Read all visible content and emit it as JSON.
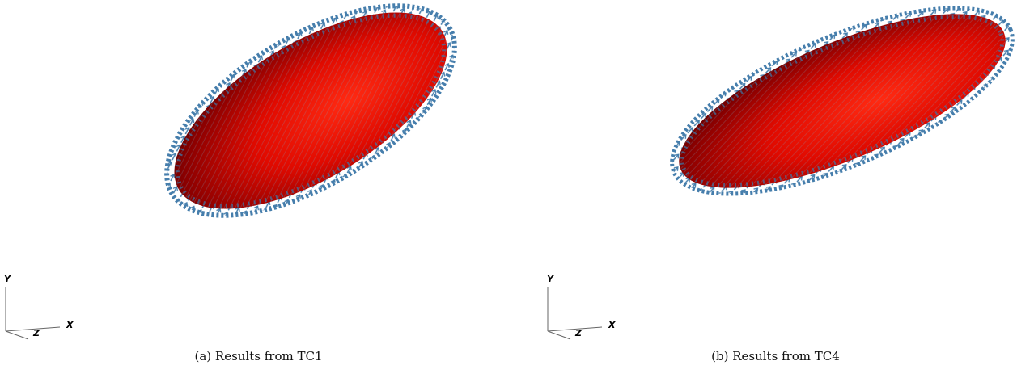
{
  "figures": [
    {
      "caption": "(a) Results from TC1",
      "axes": {
        "y": "Y",
        "x": "X",
        "z": "Z"
      },
      "colors": {
        "surface": "#ff1a0a",
        "surface_dark": "#4a0000",
        "arrows": "#3d78a8"
      }
    },
    {
      "caption": "(b) Results from TC4",
      "axes": {
        "y": "Y",
        "x": "X",
        "z": "Z"
      },
      "colors": {
        "surface": "#ff1a0a",
        "surface_dark": "#4a0000",
        "arrows": "#3d78a8"
      }
    }
  ]
}
